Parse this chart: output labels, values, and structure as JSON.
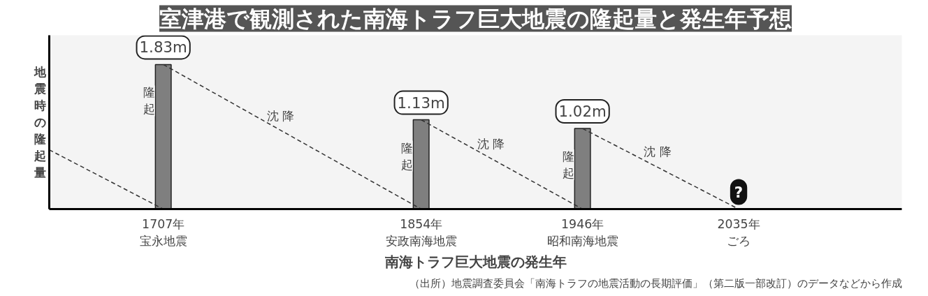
{
  "chart_data": {
    "type": "bar",
    "title": "室津港で観測された南海トラフ巨大地震の隆起量と発生年予想",
    "xlabel": "南海トラフ巨大地震の発生年",
    "ylabel": "地震時の隆起量",
    "x": [
      1707,
      1854,
      1946
    ],
    "series": [
      {
        "color": "#7f7f7f",
        "values": [
          1.83,
          1.13,
          1.02
        ],
        "value_labels": [
          "1.83m",
          "1.13m",
          "1.02m"
        ]
      },
      {
        "type": "line",
        "color": "#333333",
        "line_style": "dashed",
        "x": [
          1642,
          1707
        ],
        "values": [
          0.75,
          0
        ]
      },
      {
        "type": "line",
        "color": "#333333",
        "line_style": "dashed",
        "x": [
          1707,
          1854
        ],
        "values": [
          1.83,
          0
        ]
      },
      {
        "type": "line",
        "color": "#333333",
        "line_style": "dashed",
        "x": [
          1854,
          1946
        ],
        "values": [
          1.13,
          0
        ]
      },
      {
        "type": "line",
        "color": "#333333",
        "line_style": "dashed",
        "x": [
          1946,
          2035
        ],
        "values": [
          1.02,
          0
        ]
      }
    ],
    "xlim": [
      1642,
      2128
    ],
    "ylim": [
      0,
      2.2
    ],
    "xticks": [
      {
        "value": 1707,
        "label": "1707年宝永地震"
      },
      {
        "value": 1854,
        "label": "1854年安政南海地震"
      },
      {
        "value": 1946,
        "label": "1946年昭和南海地震"
      },
      {
        "value": 2035,
        "label": "2035年ごろ"
      }
    ],
    "tick_labels": "x",
    "grid": false,
    "annotations": [
      {
        "text": "隆起",
        "x": 1707,
        "y": 1.83
      },
      {
        "text": "隆起",
        "x": 1854,
        "y": 1.13
      },
      {
        "text": "隆起",
        "x": 1946,
        "y": 1.02
      },
      {
        "text": "沈降",
        "x": 1776,
        "y": 0.97
      },
      {
        "text": "沈降",
        "x": 1896,
        "y": 0.61
      },
      {
        "text": "沈降",
        "x": 1991,
        "y": 0.52
      },
      {
        "text": "?",
        "x": 2035,
        "y": 0
      },
      "（出所）地震調査委員会「南海トラフの地震活動の長期評価」（第二版一部改訂）のデータなどから作成"
    ]
  }
}
